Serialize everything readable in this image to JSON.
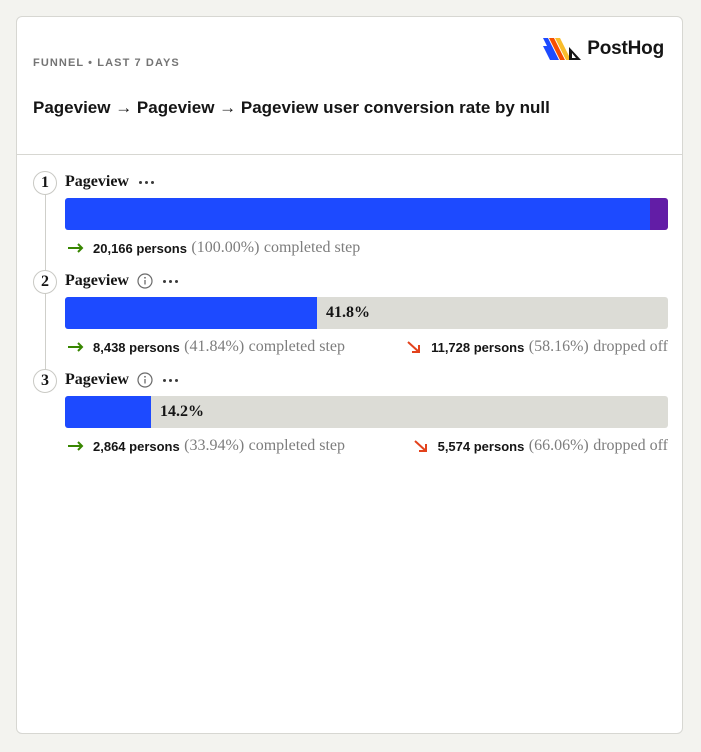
{
  "header": {
    "subtitle": "FUNNEL • LAST 7 DAYS",
    "logo_text": "PostHog",
    "title": "Pageview → Pageview → Pageview user conversion rate by null"
  },
  "colors": {
    "bar_fill": "#1d4aff",
    "bar_tail": "#621da6",
    "bar_track": "#dcdcd6",
    "completed_arrow": "#388600",
    "dropped_arrow": "#e3421c"
  },
  "chart_data": {
    "type": "funnel",
    "steps": [
      {
        "number": "1",
        "name": "Pageview",
        "has_info": false,
        "conversion_fraction": 1.0,
        "bar_label": "",
        "completed_count": "20,166 persons",
        "completed_pct": "(100.00%)",
        "completed_text": "completed step",
        "dropped_count": "",
        "dropped_pct": "",
        "dropped_text": ""
      },
      {
        "number": "2",
        "name": "Pageview",
        "has_info": true,
        "conversion_fraction": 0.418,
        "bar_label": "41.8%",
        "completed_count": "8,438 persons",
        "completed_pct": "(41.84%)",
        "completed_text": "completed step",
        "dropped_count": "11,728 persons",
        "dropped_pct": "(58.16%)",
        "dropped_text": "dropped off"
      },
      {
        "number": "3",
        "name": "Pageview",
        "has_info": true,
        "conversion_fraction": 0.142,
        "bar_label": "14.2%",
        "completed_count": "2,864 persons",
        "completed_pct": "(33.94%)",
        "completed_text": "completed step",
        "dropped_count": "5,574 persons",
        "dropped_pct": "(66.06%)",
        "dropped_text": "dropped off"
      }
    ]
  }
}
